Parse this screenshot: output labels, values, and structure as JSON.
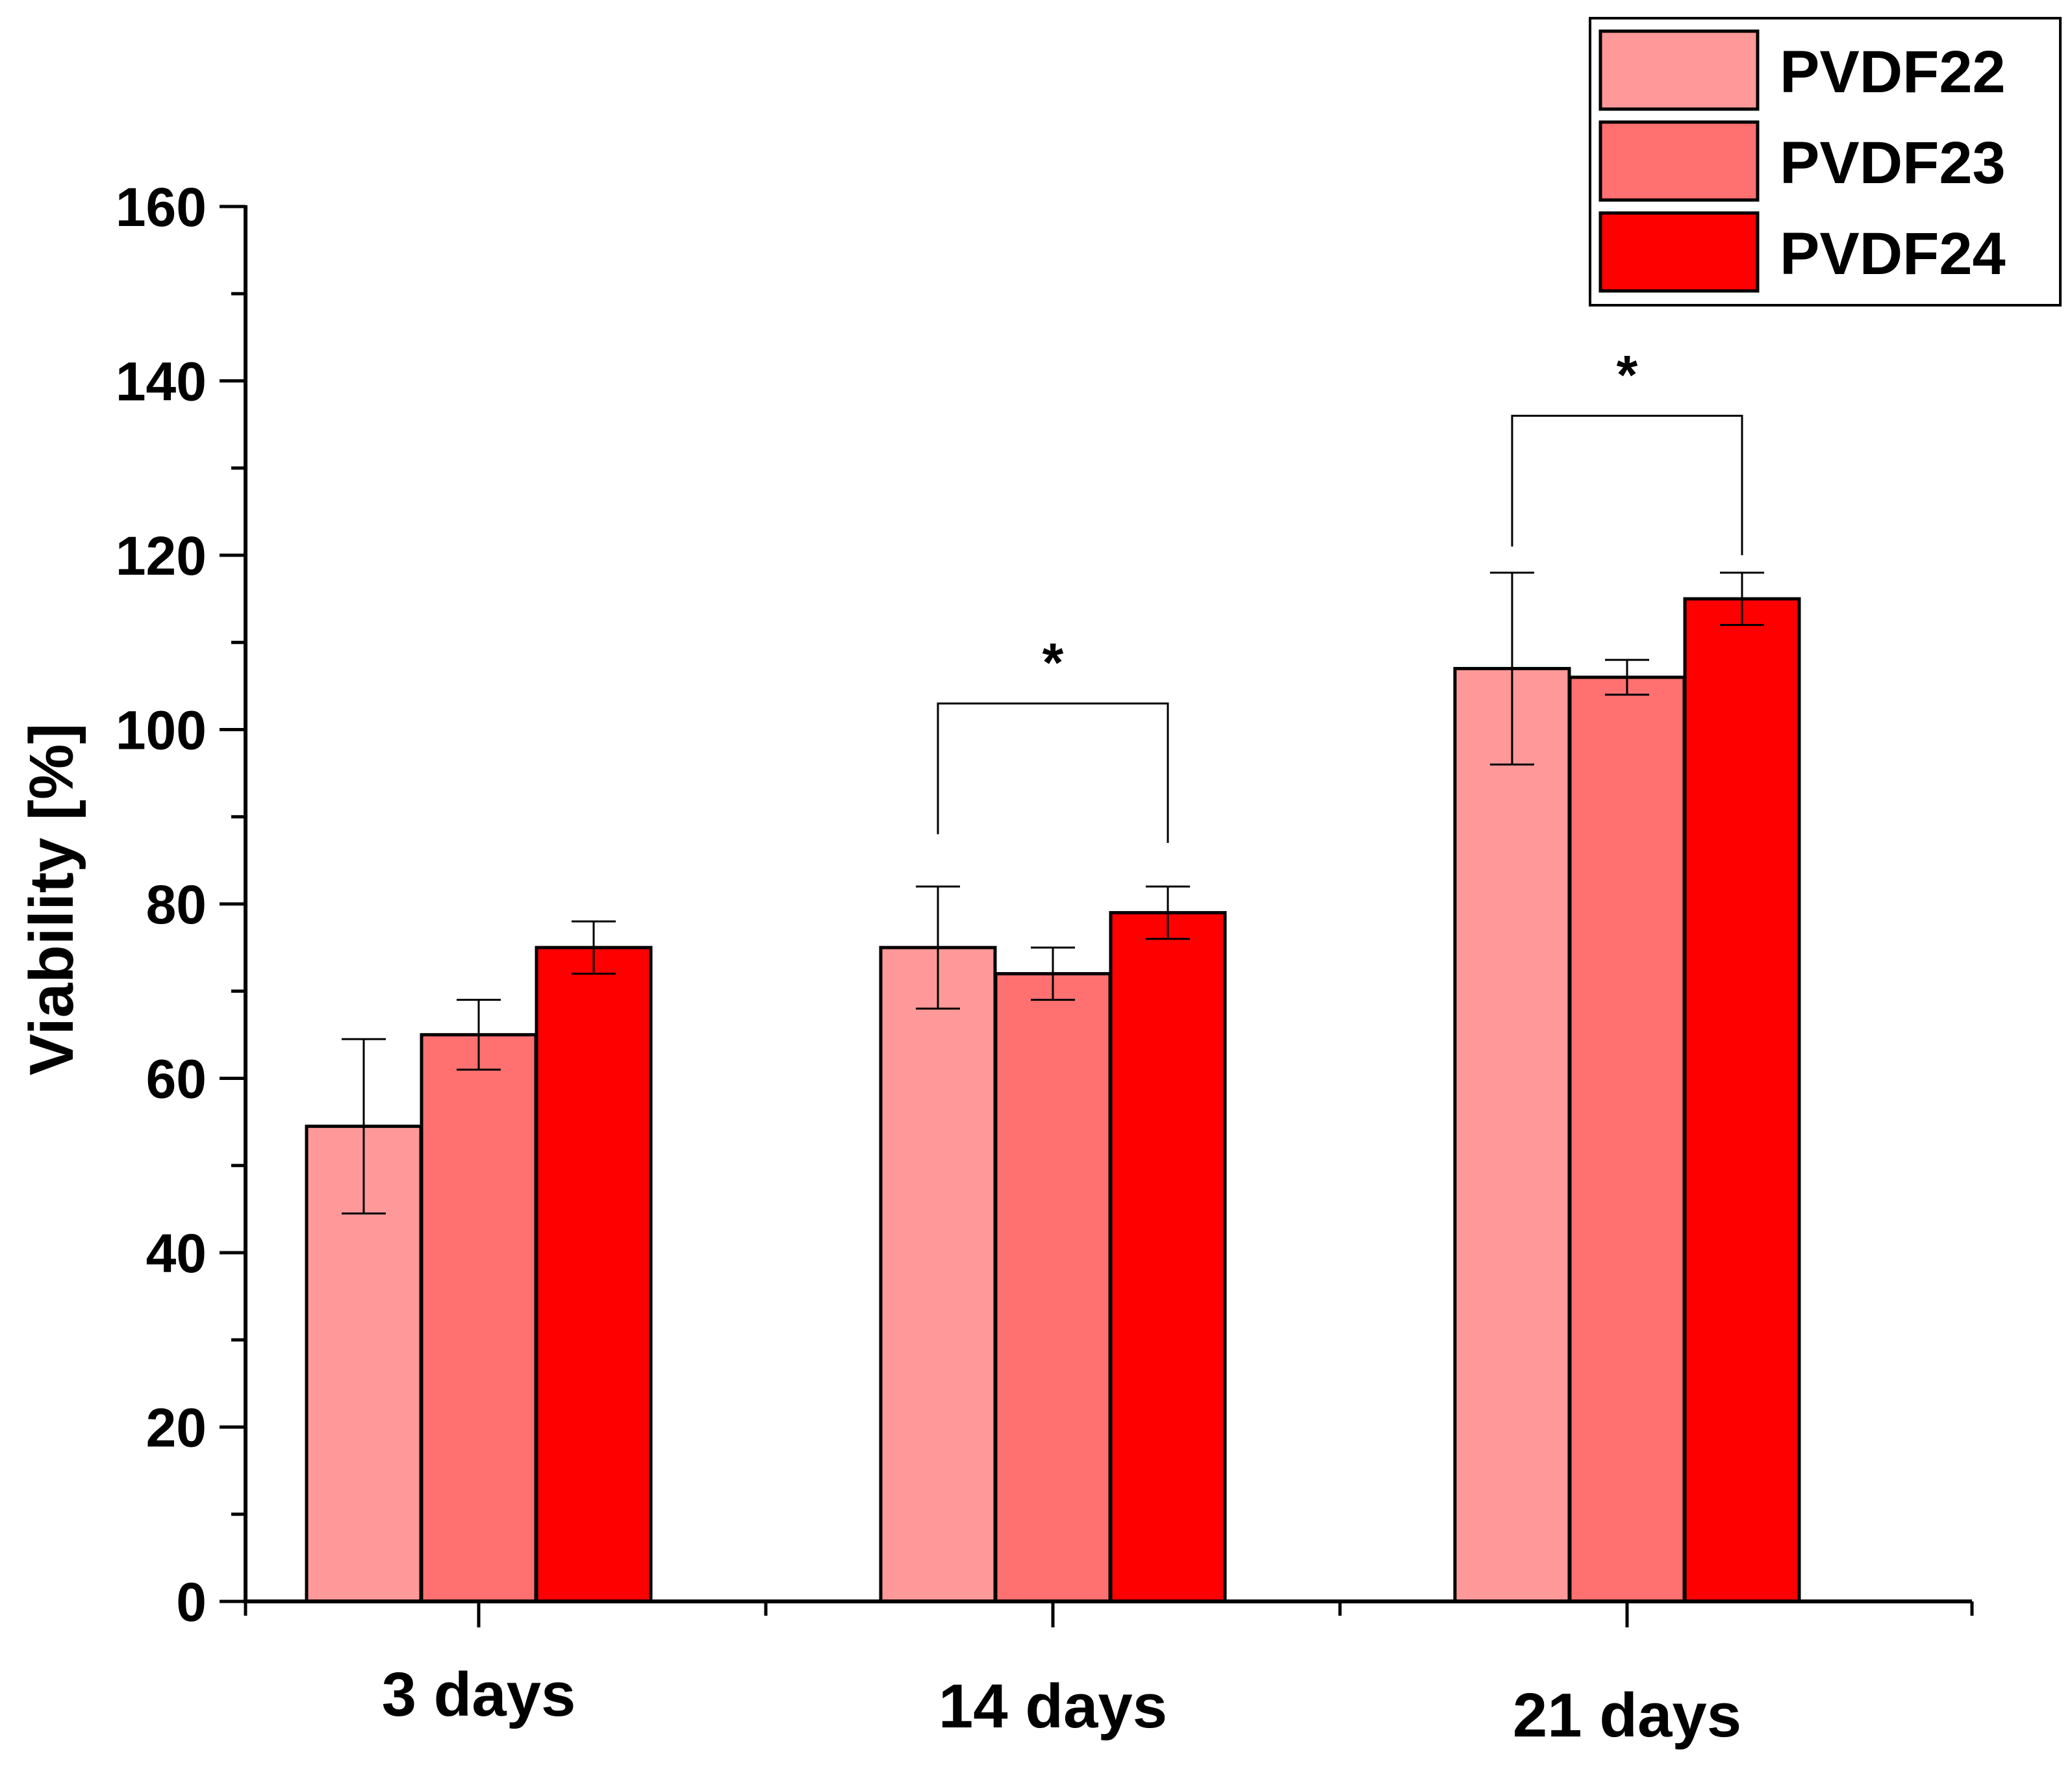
{
  "chart_data": {
    "type": "bar",
    "title": "",
    "xlabel": "",
    "ylabel": "Viability [%]",
    "ylim": [
      0,
      160
    ],
    "yticks": [
      0,
      20,
      40,
      60,
      80,
      100,
      120,
      140,
      160
    ],
    "categories": [
      "3 days",
      "14 days",
      "21 days"
    ],
    "legend_position": "top-right",
    "grid": false,
    "series": [
      {
        "name": "PVDF22",
        "color": "#FF9999",
        "values": [
          54.5,
          75,
          107
        ],
        "errors": [
          10,
          7,
          11
        ]
      },
      {
        "name": "PVDF23",
        "color": "#FF7070",
        "values": [
          65,
          72,
          106
        ],
        "errors": [
          4,
          3,
          2
        ]
      },
      {
        "name": "PVDF24",
        "color": "#FF0000",
        "values": [
          75,
          79,
          115
        ],
        "errors": [
          3,
          3,
          3
        ]
      }
    ],
    "annotations": [
      {
        "category": "14 days",
        "from_series": "PVDF22",
        "to_series": "PVDF24",
        "label": "*",
        "bracket_y": 103,
        "left_end": 88,
        "right_end": 87
      },
      {
        "category": "21 days",
        "from_series": "PVDF22",
        "to_series": "PVDF24",
        "label": "*",
        "bracket_y": 136,
        "left_end": 121,
        "right_end": 120
      }
    ]
  }
}
